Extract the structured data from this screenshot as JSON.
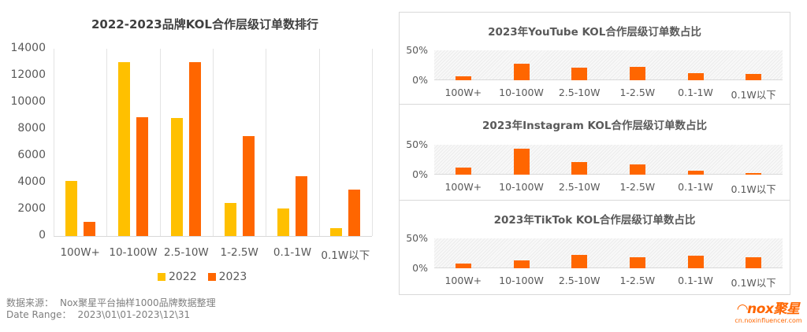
{
  "left_chart": {
    "title": "2022-2023品牌KOL合作层级订单数排行",
    "y_ticks": [
      "14000",
      "12000",
      "10000",
      "8000",
      "6000",
      "4000",
      "2000",
      "0"
    ],
    "categories": [
      "100W+",
      "10-100W",
      "2.5-10W",
      "1-2.5W",
      "0.1-1W",
      "0.1W以下"
    ],
    "legend": [
      {
        "label": "2022",
        "color": "#FFC000"
      },
      {
        "label": "2023",
        "color": "#FF6600"
      }
    ]
  },
  "panels": [
    {
      "title": "2023年YouTube KOL合作层级订单数占比",
      "y_top": "50%",
      "y_bottom": "0%"
    },
    {
      "title": "2023年Instagram KOL合作层级订单数占比",
      "y_top": "50%",
      "y_bottom": "0%"
    },
    {
      "title": "2023年TikTok KOL合作层级订单数占比",
      "y_top": "50%",
      "y_bottom": "0%"
    }
  ],
  "footer": {
    "source_label": "数据来源：",
    "source_value": "Nox聚星平台抽样1000品牌数据整理",
    "range_label": "Date Range：",
    "range_value": "2023\\01\\01-2023\\12\\31"
  },
  "logo": {
    "brand": "nox聚星",
    "url": "cn.noxinfluencer.com"
  },
  "chart_data": [
    {
      "type": "bar",
      "title": "2022-2023品牌KOL合作层级订单数排行",
      "xlabel": "",
      "ylabel": "",
      "ylim": [
        0,
        14000
      ],
      "categories": [
        "100W+",
        "10-100W",
        "2.5-10W",
        "1-2.5W",
        "0.1-1W",
        "0.1W以下"
      ],
      "series": [
        {
          "name": "2022",
          "color": "#FFC000",
          "values": [
            4100,
            13000,
            8800,
            2500,
            2050,
            600
          ]
        },
        {
          "name": "2023",
          "color": "#FF6600",
          "values": [
            1050,
            8900,
            13000,
            7500,
            4500,
            3500
          ]
        }
      ],
      "legend_position": "bottom",
      "grid": "vertical category separators"
    },
    {
      "type": "bar",
      "title": "2023年YouTube KOL合作层级订单数占比",
      "ylim": [
        0,
        50
      ],
      "y_unit": "%",
      "categories": [
        "100W+",
        "10-100W",
        "2.5-10W",
        "1-2.5W",
        "0.1-1W",
        "0.1W以下"
      ],
      "values": [
        7,
        28,
        21,
        23,
        12,
        10
      ],
      "color": "#FF6600"
    },
    {
      "type": "bar",
      "title": "2023年Instagram KOL合作层级订单数占比",
      "ylim": [
        0,
        50
      ],
      "y_unit": "%",
      "categories": [
        "100W+",
        "10-100W",
        "2.5-10W",
        "1-2.5W",
        "0.1-1W",
        "0.1W以下"
      ],
      "values": [
        12,
        43,
        21,
        17,
        7,
        3
      ],
      "color": "#FF6600"
    },
    {
      "type": "bar",
      "title": "2023年TikTok KOL合作层级订单数占比",
      "ylim": [
        0,
        50
      ],
      "y_unit": "%",
      "categories": [
        "100W+",
        "10-100W",
        "2.5-10W",
        "1-2.5W",
        "0.1-1W",
        "0.1W以下"
      ],
      "values": [
        8,
        13,
        22,
        18,
        21,
        19
      ],
      "color": "#FF6600"
    }
  ]
}
